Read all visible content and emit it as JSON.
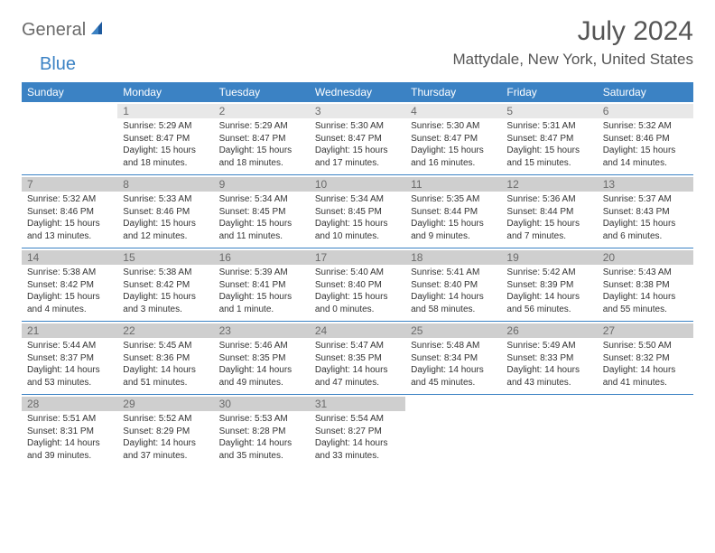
{
  "logo": {
    "text1": "General",
    "text2": "Blue"
  },
  "title": "July 2024",
  "location": "Mattydale, New York, United States",
  "colors": {
    "accent": "#3b82c4",
    "header_text": "#ffffff",
    "daynum_bg": "#e8e8e8",
    "daynum_bg_dark": "#cfcfcf",
    "page_bg": "#ffffff",
    "body_text": "#333333",
    "muted_text": "#6b6b6b"
  },
  "typography": {
    "title_fontsize": 30,
    "location_fontsize": 17,
    "header_fontsize": 12,
    "daynum_fontsize": 12,
    "cell_fontsize": 10
  },
  "day_headers": [
    "Sunday",
    "Monday",
    "Tuesday",
    "Wednesday",
    "Thursday",
    "Friday",
    "Saturday"
  ],
  "weeks": [
    [
      {
        "n": "",
        "lines": [
          "",
          "",
          "",
          ""
        ]
      },
      {
        "n": "1",
        "lines": [
          "Sunrise: 5:29 AM",
          "Sunset: 8:47 PM",
          "Daylight: 15 hours",
          "and 18 minutes."
        ]
      },
      {
        "n": "2",
        "lines": [
          "Sunrise: 5:29 AM",
          "Sunset: 8:47 PM",
          "Daylight: 15 hours",
          "and 18 minutes."
        ]
      },
      {
        "n": "3",
        "lines": [
          "Sunrise: 5:30 AM",
          "Sunset: 8:47 PM",
          "Daylight: 15 hours",
          "and 17 minutes."
        ]
      },
      {
        "n": "4",
        "lines": [
          "Sunrise: 5:30 AM",
          "Sunset: 8:47 PM",
          "Daylight: 15 hours",
          "and 16 minutes."
        ]
      },
      {
        "n": "5",
        "lines": [
          "Sunrise: 5:31 AM",
          "Sunset: 8:47 PM",
          "Daylight: 15 hours",
          "and 15 minutes."
        ]
      },
      {
        "n": "6",
        "lines": [
          "Sunrise: 5:32 AM",
          "Sunset: 8:46 PM",
          "Daylight: 15 hours",
          "and 14 minutes."
        ]
      }
    ],
    [
      {
        "n": "7",
        "lines": [
          "Sunrise: 5:32 AM",
          "Sunset: 8:46 PM",
          "Daylight: 15 hours",
          "and 13 minutes."
        ]
      },
      {
        "n": "8",
        "lines": [
          "Sunrise: 5:33 AM",
          "Sunset: 8:46 PM",
          "Daylight: 15 hours",
          "and 12 minutes."
        ]
      },
      {
        "n": "9",
        "lines": [
          "Sunrise: 5:34 AM",
          "Sunset: 8:45 PM",
          "Daylight: 15 hours",
          "and 11 minutes."
        ]
      },
      {
        "n": "10",
        "lines": [
          "Sunrise: 5:34 AM",
          "Sunset: 8:45 PM",
          "Daylight: 15 hours",
          "and 10 minutes."
        ]
      },
      {
        "n": "11",
        "lines": [
          "Sunrise: 5:35 AM",
          "Sunset: 8:44 PM",
          "Daylight: 15 hours",
          "and 9 minutes."
        ]
      },
      {
        "n": "12",
        "lines": [
          "Sunrise: 5:36 AM",
          "Sunset: 8:44 PM",
          "Daylight: 15 hours",
          "and 7 minutes."
        ]
      },
      {
        "n": "13",
        "lines": [
          "Sunrise: 5:37 AM",
          "Sunset: 8:43 PM",
          "Daylight: 15 hours",
          "and 6 minutes."
        ]
      }
    ],
    [
      {
        "n": "14",
        "lines": [
          "Sunrise: 5:38 AM",
          "Sunset: 8:42 PM",
          "Daylight: 15 hours",
          "and 4 minutes."
        ]
      },
      {
        "n": "15",
        "lines": [
          "Sunrise: 5:38 AM",
          "Sunset: 8:42 PM",
          "Daylight: 15 hours",
          "and 3 minutes."
        ]
      },
      {
        "n": "16",
        "lines": [
          "Sunrise: 5:39 AM",
          "Sunset: 8:41 PM",
          "Daylight: 15 hours",
          "and 1 minute."
        ]
      },
      {
        "n": "17",
        "lines": [
          "Sunrise: 5:40 AM",
          "Sunset: 8:40 PM",
          "Daylight: 15 hours",
          "and 0 minutes."
        ]
      },
      {
        "n": "18",
        "lines": [
          "Sunrise: 5:41 AM",
          "Sunset: 8:40 PM",
          "Daylight: 14 hours",
          "and 58 minutes."
        ]
      },
      {
        "n": "19",
        "lines": [
          "Sunrise: 5:42 AM",
          "Sunset: 8:39 PM",
          "Daylight: 14 hours",
          "and 56 minutes."
        ]
      },
      {
        "n": "20",
        "lines": [
          "Sunrise: 5:43 AM",
          "Sunset: 8:38 PM",
          "Daylight: 14 hours",
          "and 55 minutes."
        ]
      }
    ],
    [
      {
        "n": "21",
        "lines": [
          "Sunrise: 5:44 AM",
          "Sunset: 8:37 PM",
          "Daylight: 14 hours",
          "and 53 minutes."
        ]
      },
      {
        "n": "22",
        "lines": [
          "Sunrise: 5:45 AM",
          "Sunset: 8:36 PM",
          "Daylight: 14 hours",
          "and 51 minutes."
        ]
      },
      {
        "n": "23",
        "lines": [
          "Sunrise: 5:46 AM",
          "Sunset: 8:35 PM",
          "Daylight: 14 hours",
          "and 49 minutes."
        ]
      },
      {
        "n": "24",
        "lines": [
          "Sunrise: 5:47 AM",
          "Sunset: 8:35 PM",
          "Daylight: 14 hours",
          "and 47 minutes."
        ]
      },
      {
        "n": "25",
        "lines": [
          "Sunrise: 5:48 AM",
          "Sunset: 8:34 PM",
          "Daylight: 14 hours",
          "and 45 minutes."
        ]
      },
      {
        "n": "26",
        "lines": [
          "Sunrise: 5:49 AM",
          "Sunset: 8:33 PM",
          "Daylight: 14 hours",
          "and 43 minutes."
        ]
      },
      {
        "n": "27",
        "lines": [
          "Sunrise: 5:50 AM",
          "Sunset: 8:32 PM",
          "Daylight: 14 hours",
          "and 41 minutes."
        ]
      }
    ],
    [
      {
        "n": "28",
        "lines": [
          "Sunrise: 5:51 AM",
          "Sunset: 8:31 PM",
          "Daylight: 14 hours",
          "and 39 minutes."
        ]
      },
      {
        "n": "29",
        "lines": [
          "Sunrise: 5:52 AM",
          "Sunset: 8:29 PM",
          "Daylight: 14 hours",
          "and 37 minutes."
        ]
      },
      {
        "n": "30",
        "lines": [
          "Sunrise: 5:53 AM",
          "Sunset: 8:28 PM",
          "Daylight: 14 hours",
          "and 35 minutes."
        ]
      },
      {
        "n": "31",
        "lines": [
          "Sunrise: 5:54 AM",
          "Sunset: 8:27 PM",
          "Daylight: 14 hours",
          "and 33 minutes."
        ]
      },
      {
        "n": "",
        "lines": [
          "",
          "",
          "",
          ""
        ]
      },
      {
        "n": "",
        "lines": [
          "",
          "",
          "",
          ""
        ]
      },
      {
        "n": "",
        "lines": [
          "",
          "",
          "",
          ""
        ]
      }
    ]
  ]
}
